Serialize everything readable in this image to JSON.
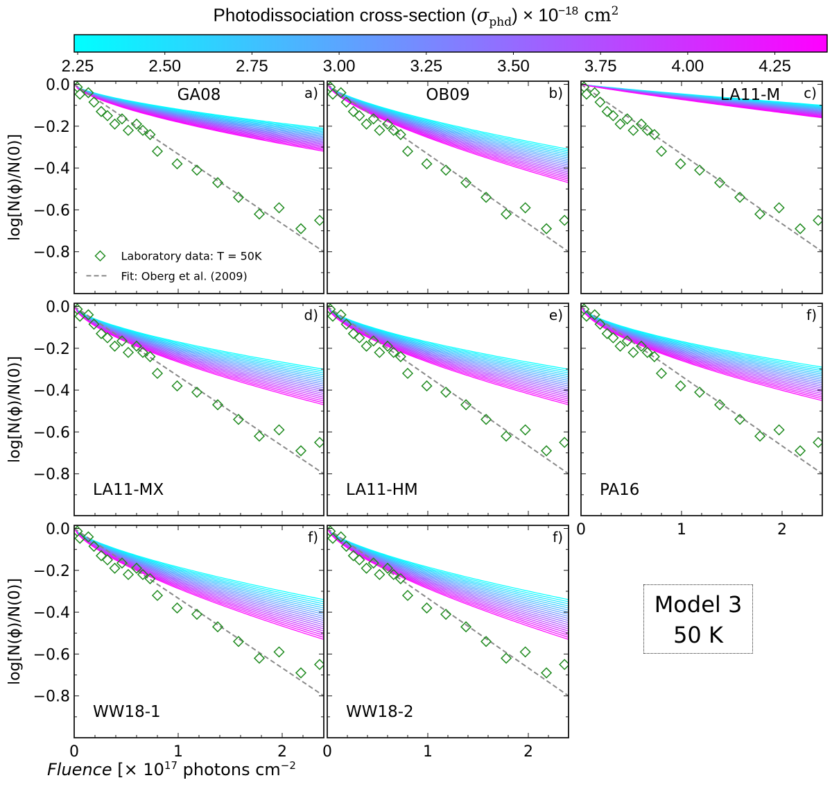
{
  "colorbar": {
    "title_main": "Photodissociation cross-section (",
    "title_symbol": "σ",
    "title_sub": "phd",
    "title_rest": ") × 10",
    "title_exp": "−18",
    "title_unit": " cm",
    "title_unit_exp": "2",
    "range": [
      2.24,
      4.4
    ],
    "ticks": [
      "2.25",
      "2.50",
      "2.75",
      "3.00",
      "3.25",
      "3.50",
      "3.75",
      "4.00",
      "4.25"
    ],
    "color_low": "#00ffff",
    "color_high": "#ff00ff"
  },
  "model_box": {
    "line1": "Model 3",
    "line2": "50 K"
  },
  "xlabel": {
    "italic": "Fluence",
    "text": " [× 10",
    "exp": "17",
    "text2": " photons cm",
    "exp2": "−2"
  },
  "chart_data": {
    "type": "line",
    "ylabel": "log[N(ϕ)/N(0)]",
    "xlim": [
      0,
      2.4
    ],
    "ylim": [
      -1.0,
      0.015
    ],
    "yticks": [
      "0.0",
      "-0.2",
      "-0.4",
      "-0.6",
      "-0.8"
    ],
    "xticks": [
      "0",
      "1",
      "2"
    ],
    "legend": {
      "lab": "Laboratory data: T = 50K",
      "fit": "Fit: Oberg et al. (2009)",
      "placement": "lower-left"
    },
    "lab_color": "#1e8a1e",
    "fit_color": "#888888",
    "lab_data": {
      "x": [
        0.03,
        0.055,
        0.136,
        0.19,
        0.26,
        0.32,
        0.39,
        0.46,
        0.52,
        0.6,
        0.66,
        0.73,
        0.8,
        0.99,
        1.18,
        1.38,
        1.58,
        1.78,
        1.97,
        2.18,
        2.36
      ],
      "y": [
        -0.013,
        -0.047,
        -0.04,
        -0.085,
        -0.13,
        -0.15,
        -0.19,
        -0.165,
        -0.22,
        -0.19,
        -0.22,
        -0.24,
        -0.32,
        -0.38,
        -0.41,
        -0.47,
        -0.54,
        -0.62,
        -0.59,
        -0.69,
        -0.65
      ]
    },
    "fit": {
      "x": [
        0,
        2.4
      ],
      "y": [
        0,
        -0.8
      ]
    },
    "n_model_curves": 20,
    "panels": [
      {
        "name": "GA08",
        "letter": "a)",
        "name_pos": "top",
        "end_y_low_sigma": -0.21,
        "end_y_high_sigma": -0.32,
        "shape": 0.65
      },
      {
        "name": "OB09",
        "letter": "b)",
        "name_pos": "top",
        "end_y_low_sigma": -0.31,
        "end_y_high_sigma": -0.47,
        "shape": 0.7
      },
      {
        "name": "LA11-M",
        "letter": "c)",
        "name_pos": "top",
        "end_y_low_sigma": -0.1,
        "end_y_high_sigma": -0.16,
        "shape": 0.9
      },
      {
        "name": "LA11-MX",
        "letter": "d)",
        "name_pos": "bottom",
        "end_y_low_sigma": -0.3,
        "end_y_high_sigma": -0.47,
        "shape": 0.65
      },
      {
        "name": "LA11-HM",
        "letter": "e)",
        "name_pos": "bottom",
        "end_y_low_sigma": -0.3,
        "end_y_high_sigma": -0.47,
        "shape": 0.65
      },
      {
        "name": "PA16",
        "letter": "f)",
        "name_pos": "bottom",
        "end_y_low_sigma": -0.29,
        "end_y_high_sigma": -0.45,
        "shape": 0.63
      },
      {
        "name": "WW18-1",
        "letter": "f)",
        "name_pos": "bottom",
        "end_y_low_sigma": -0.34,
        "end_y_high_sigma": -0.53,
        "shape": 0.7
      },
      {
        "name": "WW18-2",
        "letter": "f)",
        "name_pos": "bottom",
        "end_y_low_sigma": -0.34,
        "end_y_high_sigma": -0.53,
        "shape": 0.7
      }
    ]
  }
}
